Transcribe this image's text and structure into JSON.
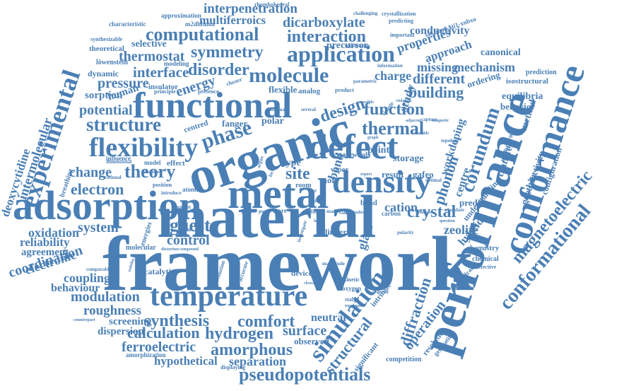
{
  "colors": {
    "word": "#4a7fb5",
    "background": "#ffffff"
  },
  "words": [
    "framework",
    "material",
    "organic",
    "performance",
    "adsorption",
    "metal",
    "functional",
    "conformance",
    "density",
    "defect",
    "temperature",
    "experimental",
    "flexibility",
    "phase",
    "application",
    "molecule",
    "simulation",
    "pseudopotentials",
    "computational",
    "structure",
    "conformational",
    "hydrogen",
    "amorphous",
    "corundum",
    "function",
    "thermal",
    "interaction",
    "interpenetration",
    "dicarboxylate",
    "multiferroics",
    "symmetry",
    "disorder",
    "interface",
    "energy",
    "thermostat",
    "comfort",
    "synthesis",
    "calculation",
    "surface",
    "ferroelectric",
    "roughness",
    "modulation",
    "theory",
    "electron",
    "change",
    "guest",
    "crystal",
    "cation",
    "magnetoelectric",
    "diffraction",
    "coordination",
    "intermolecular",
    "system",
    "control",
    "site",
    "building",
    "design",
    "different",
    "mechanism",
    "missing",
    "potential",
    "pressure",
    "structural",
    "separation",
    "hypothetical",
    "behaviour",
    "coupling",
    "electronic",
    "oxidation",
    "reliability",
    "agreement",
    "deoxycytidine",
    "phonon",
    "operation",
    "zeolite",
    "conductivity",
    "properties",
    "approach",
    "charge",
    "precursor",
    "glass",
    "bond",
    "neutral",
    "dispersion",
    "screening",
    "observed",
    "study",
    "workdoping",
    "centre",
    "hybrid",
    "goethite",
    "selectivity",
    "configuration",
    "transfer",
    "method",
    "equilibria",
    "behavior",
    "isostructural",
    "prediction",
    "canonical",
    "ordering",
    "selective",
    "dynamic",
    "sorption",
    "human",
    "insulator",
    "type",
    "polar",
    "fanger",
    "point",
    "storage",
    "result",
    "gafeo",
    "mofs",
    "state",
    "predict",
    "understanding",
    "chemistry",
    "competition",
    "characteristic",
    "approximation",
    "m2dhfuma",
    "theoretical",
    "synthesizable",
    "löwenstein",
    "modeling",
    "rhombohedral",
    "crystallization",
    "challenging",
    "predicting",
    "important",
    "la0.5na0.5ti1-xnbxo",
    "substitution",
    "information",
    "parametric",
    "flexible",
    "analog",
    "product",
    "presence",
    "principle",
    "cluster",
    "minimal",
    "several",
    "room",
    "vapor",
    "waals",
    "centred",
    "influence",
    "dimensional",
    "model",
    "effect",
    "breathing",
    "atomic",
    "position",
    "rational",
    "introduce",
    "vacancies",
    "case",
    "band",
    "carbon",
    "form",
    "many",
    "more",
    "present",
    "molecular",
    "catalytic",
    "comparable",
    "counterpart",
    "amorphization",
    "displaying",
    "significant",
    "resolution",
    "generating",
    "ordered",
    "kinetic",
    "oxygen",
    "device",
    "linker",
    "octahedral",
    "chemical",
    "defective",
    "intrinsic",
    "topology",
    "capture",
    "adjacent",
    "simple",
    "accessible",
    "violation",
    "magnetic",
    "nanoporous",
    "optimal",
    "cleavage",
    "stable",
    "topologies",
    "energies",
    "evolution",
    "accurate",
    "number",
    "magnitude",
    "multiple",
    "elucidate",
    "question",
    "polarity",
    "transport",
    "distortion",
    "compound",
    "cutting",
    "stability",
    "investigate",
    "range",
    "studies",
    "large",
    "parent",
    "pore",
    "level",
    "report",
    "variable",
    "graph",
    "local",
    "argon"
  ]
}
